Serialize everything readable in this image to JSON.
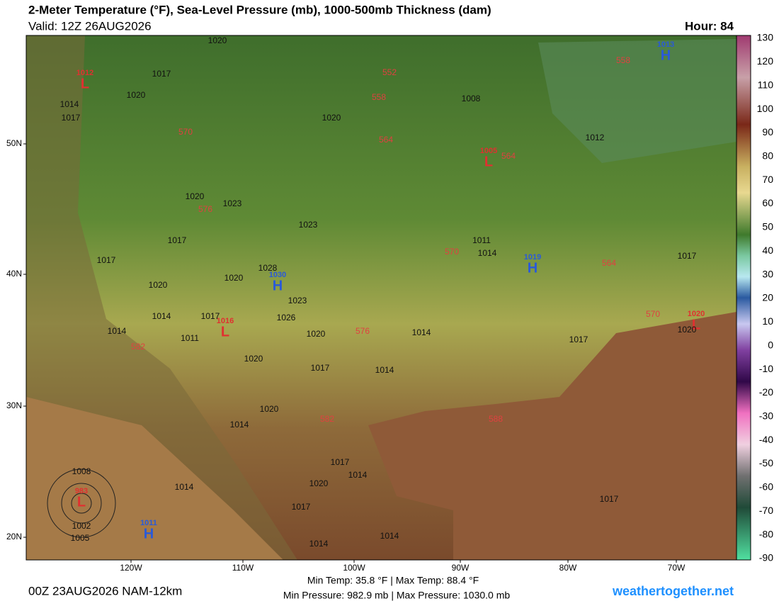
{
  "header": {
    "title": "2-Meter Temperature (°F), Sea-Level Pressure (mb), 1000-500mb Thickness (dam)",
    "valid": "Valid: 12Z 26AUG2026",
    "hour": "Hour: 84"
  },
  "map": {
    "pressure_centers": [
      {
        "symbol": "L",
        "value": 1012
      },
      {
        "symbol": "L",
        "value": 1005
      },
      {
        "symbol": "H",
        "value": 1013
      },
      {
        "symbol": "H",
        "value": 1019
      },
      {
        "symbol": "H",
        "value": 1030
      },
      {
        "symbol": "L",
        "value": 1016
      },
      {
        "symbol": "L",
        "value": 1020
      },
      {
        "symbol": "L",
        "value": 983
      },
      {
        "symbol": "H",
        "value": 1011
      }
    ],
    "isobar_labels": [
      1020,
      1017,
      1020,
      1014,
      1017,
      1008,
      1020,
      1012,
      1020,
      1023,
      1023,
      1017,
      1017,
      1011,
      1014,
      1017,
      1020,
      1020,
      1028,
      1023,
      1017,
      1014,
      1014,
      1011,
      1026,
      1020,
      1014,
      1017,
      1020,
      1017,
      1014,
      1020,
      1014,
      1017,
      1014,
      1020,
      1017,
      1014,
      1014,
      1017,
      1014,
      1008,
      1002,
      1005,
      1020
    ],
    "thickness_labels": [
      558,
      552,
      558,
      564,
      564,
      570,
      576,
      570,
      564,
      570,
      576,
      582,
      582,
      588
    ],
    "latitude_labels": [
      "50N",
      "40N",
      "30N",
      "20N"
    ],
    "longitude_labels": [
      "120W",
      "110W",
      "100W",
      "90W",
      "80W",
      "70W"
    ]
  },
  "colorbar": {
    "labels": [
      130,
      120,
      110,
      100,
      90,
      80,
      70,
      60,
      50,
      40,
      30,
      20,
      10,
      0,
      -10,
      -20,
      -30,
      -40,
      -50,
      -60,
      -70,
      -80,
      -90
    ]
  },
  "footer": {
    "temperature": "Min Temp:  35.8 °F | Max Temp:  88.4 °F",
    "pressure": "Min Pressure: 982.9 mb | Max Pressure: 1030.0 mb",
    "run": "00Z 23AUG2026 NAM-12km",
    "credit": "weathertogether.net"
  }
}
